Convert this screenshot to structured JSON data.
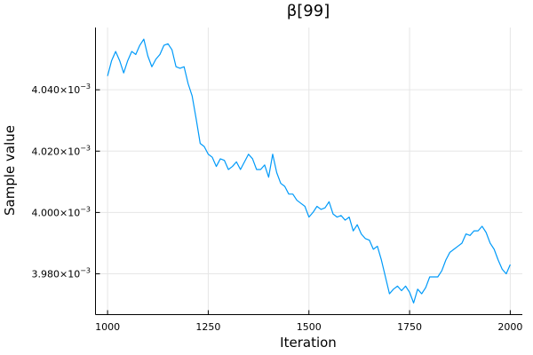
{
  "chart_data": {
    "type": "line",
    "title": "β[99]",
    "xlabel": "Iteration",
    "ylabel": "Sample value",
    "xlim": [
      970,
      2030
    ],
    "ylim": [
      0.0039667,
      0.0040603
    ],
    "x_ticks": [
      1000,
      1250,
      1500,
      1750,
      2000
    ],
    "x_tick_labels": [
      "1000",
      "1250",
      "1500",
      "1750",
      "2000"
    ],
    "y_ticks": [
      0.00398,
      0.004,
      0.00402,
      0.00404
    ],
    "y_tick_labels": [
      {
        "mantissa": "3.980×10",
        "exp": "−3"
      },
      {
        "mantissa": "4.000×10",
        "exp": "−3"
      },
      {
        "mantissa": "4.020×10",
        "exp": "−3"
      },
      {
        "mantissa": "4.040×10",
        "exp": "−3"
      }
    ],
    "grid": true,
    "legend": "none",
    "series": [
      {
        "color": "#009AF9",
        "x": [
          1000,
          1010,
          1020,
          1030,
          1040,
          1050,
          1060,
          1070,
          1080,
          1090,
          1100,
          1110,
          1120,
          1130,
          1140,
          1150,
          1160,
          1170,
          1180,
          1190,
          1200,
          1210,
          1220,
          1230,
          1240,
          1250,
          1260,
          1270,
          1280,
          1290,
          1300,
          1310,
          1320,
          1330,
          1340,
          1350,
          1360,
          1370,
          1380,
          1390,
          1400,
          1410,
          1420,
          1430,
          1440,
          1450,
          1460,
          1470,
          1480,
          1490,
          1500,
          1510,
          1520,
          1530,
          1540,
          1550,
          1560,
          1570,
          1580,
          1590,
          1600,
          1610,
          1620,
          1630,
          1640,
          1650,
          1660,
          1670,
          1680,
          1690,
          1700,
          1710,
          1720,
          1730,
          1740,
          1750,
          1760,
          1770,
          1780,
          1790,
          1800,
          1810,
          1820,
          1830,
          1840,
          1850,
          1860,
          1870,
          1880,
          1890,
          1900,
          1910,
          1920,
          1930,
          1940,
          1950,
          1960,
          1970,
          1980,
          1990,
          2000
        ],
        "y": [
          0.0040445,
          0.0040495,
          0.0040525,
          0.0040495,
          0.0040455,
          0.0040495,
          0.0040525,
          0.0040515,
          0.0040545,
          0.0040565,
          0.004051,
          0.0040475,
          0.00405,
          0.0040515,
          0.0040545,
          0.004055,
          0.004053,
          0.0040475,
          0.004047,
          0.0040475,
          0.004042,
          0.004038,
          0.0040305,
          0.0040225,
          0.0040215,
          0.004019,
          0.004018,
          0.004015,
          0.0040175,
          0.004017,
          0.004014,
          0.004015,
          0.0040165,
          0.004014,
          0.0040165,
          0.004019,
          0.0040175,
          0.004014,
          0.004014,
          0.0040155,
          0.0040115,
          0.004019,
          0.004013,
          0.0040095,
          0.0040085,
          0.004006,
          0.004006,
          0.004004,
          0.004003,
          0.004002,
          0.0039985,
          0.004,
          0.004002,
          0.004001,
          0.0040015,
          0.0040035,
          0.0039995,
          0.0039985,
          0.003999,
          0.0039975,
          0.0039985,
          0.003994,
          0.003996,
          0.003993,
          0.0039915,
          0.003991,
          0.003988,
          0.003989,
          0.0039845,
          0.003979,
          0.0039735,
          0.003975,
          0.003976,
          0.0039745,
          0.003976,
          0.003974,
          0.0039705,
          0.003975,
          0.0039735,
          0.0039755,
          0.003979,
          0.003979,
          0.003979,
          0.003981,
          0.0039845,
          0.003987,
          0.003988,
          0.003989,
          0.00399,
          0.003993,
          0.0039925,
          0.003994,
          0.003994,
          0.0039955,
          0.0039935,
          0.00399,
          0.003988,
          0.0039845,
          0.0039815,
          0.00398,
          0.003983
        ]
      }
    ]
  }
}
